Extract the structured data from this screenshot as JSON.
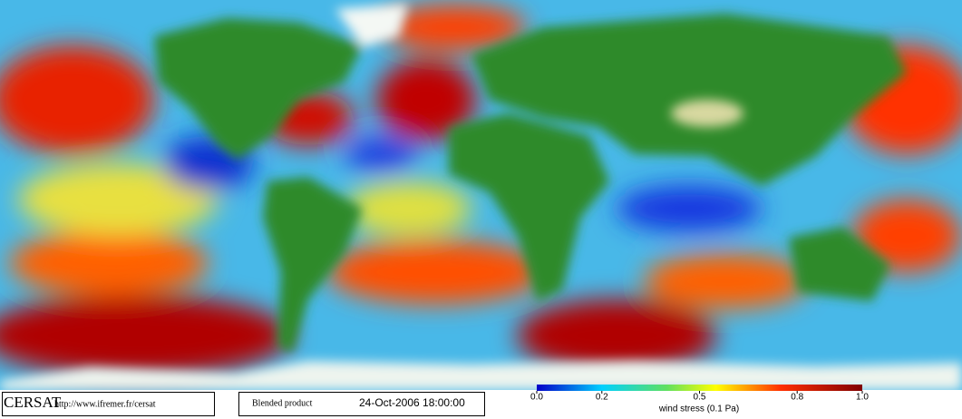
{
  "logo": "CERSAT",
  "url": "http://www.ifremer.fr/cersat",
  "product": "Blended product",
  "datetime": "24-Oct-2006 18:00:00",
  "colorbar": {
    "label": "wind stress (0.1 Pa)",
    "range": [
      0,
      1
    ],
    "ticks": [
      {
        "value": 0,
        "label": "0.0"
      },
      {
        "value": 0.2,
        "label": "0.2"
      },
      {
        "value": 0.5,
        "label": "0.5"
      },
      {
        "value": 0.8,
        "label": "0.8"
      },
      {
        "value": 1,
        "label": "1.0"
      }
    ]
  }
}
